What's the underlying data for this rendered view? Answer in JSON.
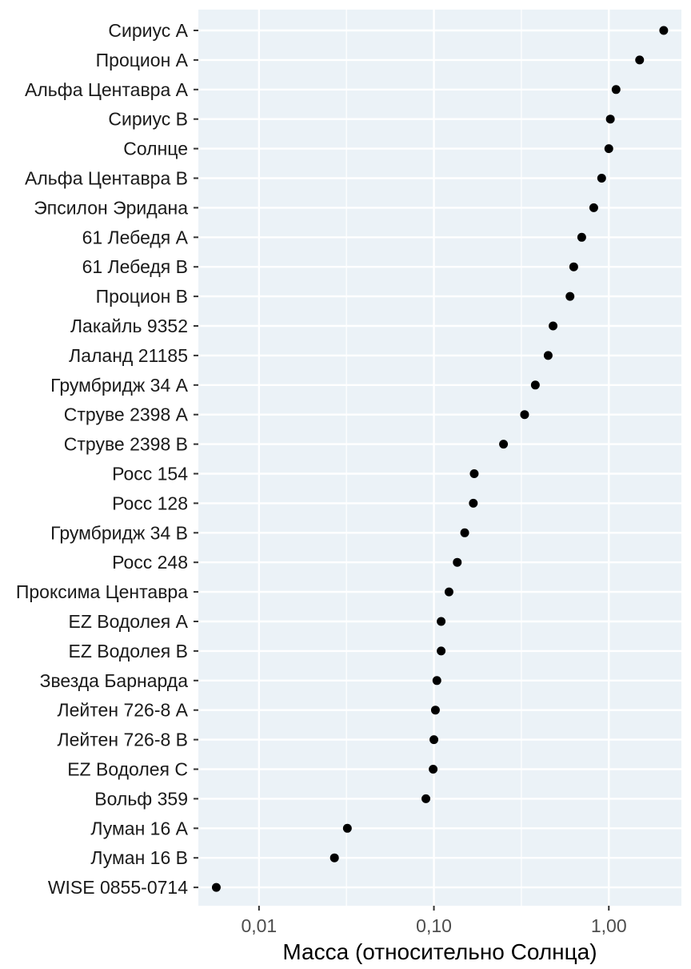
{
  "chart_data": {
    "type": "scatter",
    "xlabel": "Масса (относительно Солнца)",
    "ylabel": "",
    "x_scale": "log",
    "xlim": [
      0.0045,
      2.6
    ],
    "x_ticks": [
      {
        "value": 0.01,
        "label": "0,01"
      },
      {
        "value": 0.1,
        "label": "0,10"
      },
      {
        "value": 1.0,
        "label": "1,00"
      }
    ],
    "grid": true,
    "points": [
      {
        "name": "Сириус A",
        "mass": 2.06
      },
      {
        "name": "Процион A",
        "mass": 1.5
      },
      {
        "name": "Альфа Центавра A",
        "mass": 1.1
      },
      {
        "name": "Сириус B",
        "mass": 1.02
      },
      {
        "name": "Солнце",
        "mass": 1.0
      },
      {
        "name": "Альфа Центавра B",
        "mass": 0.91
      },
      {
        "name": "Эпсилон Эридана",
        "mass": 0.82
      },
      {
        "name": "61 Лебедя A",
        "mass": 0.7
      },
      {
        "name": "61 Лебедя B",
        "mass": 0.63
      },
      {
        "name": "Процион B",
        "mass": 0.6
      },
      {
        "name": "Лакайль 9352",
        "mass": 0.48
      },
      {
        "name": "Лаланд 21185",
        "mass": 0.45
      },
      {
        "name": "Грумбридж 34 A",
        "mass": 0.38
      },
      {
        "name": "Струве 2398 A",
        "mass": 0.33
      },
      {
        "name": "Струве 2398 B",
        "mass": 0.25
      },
      {
        "name": "Росс 154",
        "mass": 0.17
      },
      {
        "name": "Росс 128",
        "mass": 0.168
      },
      {
        "name": "Грумбридж 34 B",
        "mass": 0.15
      },
      {
        "name": "Росс 248",
        "mass": 0.136
      },
      {
        "name": "Проксима Центавра",
        "mass": 0.122
      },
      {
        "name": "EZ Водолея A",
        "mass": 0.11
      },
      {
        "name": "EZ Водолея B",
        "mass": 0.11
      },
      {
        "name": "Звезда Барнарда",
        "mass": 0.104
      },
      {
        "name": "Лейтен 726-8 A",
        "mass": 0.102
      },
      {
        "name": "Лейтен 726-8 B",
        "mass": 0.1
      },
      {
        "name": "EZ Водолея C",
        "mass": 0.099
      },
      {
        "name": "Вольф 359",
        "mass": 0.09
      },
      {
        "name": "Луман 16 A",
        "mass": 0.032
      },
      {
        "name": "Луман 16 B",
        "mass": 0.027
      },
      {
        "name": "WISE 0855-0714",
        "mass": 0.0057
      }
    ]
  },
  "colors": {
    "panel_background": "#ebf2f7",
    "grid_major": "#ffffff",
    "point": "#000000",
    "axis_tick": "#333333"
  }
}
